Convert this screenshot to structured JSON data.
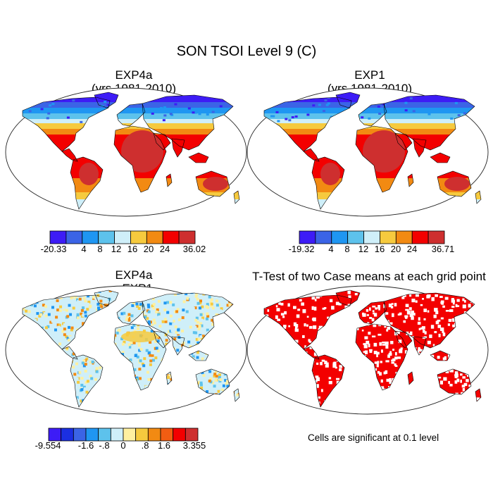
{
  "main_title": "SON TSOI Level 9 (C)",
  "panels": [
    {
      "id": "tl",
      "title_line1": "EXP4a",
      "title_line2": "(yrs 1981-2010)",
      "type": "climatology",
      "colorbar": {
        "colors": [
          "#3d1cf6",
          "#3b64e6",
          "#1f96f2",
          "#5dc2ec",
          "#cfeff9",
          "#f6ca3e",
          "#f28a12",
          "#f30000",
          "#ce2f2f"
        ],
        "labels": [
          "-20.33",
          "4",
          "8",
          "12",
          "16",
          "20",
          "24",
          "36.02"
        ]
      }
    },
    {
      "id": "tr",
      "title_line1": "EXP1",
      "title_line2": "(yrs 1981-2010)",
      "type": "climatology",
      "colorbar": {
        "colors": [
          "#3d1cf6",
          "#3b64e6",
          "#1f96f2",
          "#5dc2ec",
          "#cfeff9",
          "#f6ca3e",
          "#f28a12",
          "#f30000",
          "#ce2f2f"
        ],
        "labels": [
          "-19.32",
          "4",
          "8",
          "12",
          "16",
          "20",
          "24",
          "36.71"
        ]
      }
    },
    {
      "id": "bl",
      "title_line1": "EXP4a",
      "title_line2": "- EXP1",
      "type": "difference",
      "colorbar": {
        "colors": [
          "#3d1cf6",
          "#1b2fe1",
          "#3b64e6",
          "#1f96f2",
          "#5dc2ec",
          "#cfeff9",
          "#fff0a0",
          "#f6ca3e",
          "#f28a12",
          "#f25d12",
          "#f30000",
          "#ce2f2f"
        ],
        "labels": [
          "-9.554",
          "-1.6",
          "-.8",
          "0",
          ".8",
          "1.6",
          "3.355"
        ]
      }
    },
    {
      "id": "br",
      "title_line1": "T-Test of two Case means at each grid point",
      "title_line2": "",
      "type": "significance"
    }
  ],
  "significance_note": "Cells are significant at 0.1 level"
}
